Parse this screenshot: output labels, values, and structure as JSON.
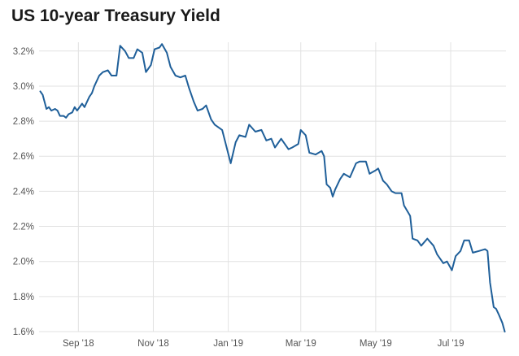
{
  "chart_data": {
    "type": "line",
    "title": "US 10-year Treasury Yield",
    "xlabel": "",
    "ylabel": "",
    "y_unit": "%",
    "ylim": [
      1.6,
      3.25
    ],
    "yticks": [
      1.6,
      1.8,
      2.0,
      2.2,
      2.4,
      2.6,
      2.8,
      3.0,
      3.2
    ],
    "ytick_labels": [
      "1.6%",
      "1.8%",
      "2.0%",
      "2.2%",
      "2.4%",
      "2.6%",
      "2.8%",
      "3.0%",
      "3.2%"
    ],
    "xlim": [
      "2018-07-31",
      "2019-08-15"
    ],
    "xticks": [
      "2018-09-01",
      "2018-11-01",
      "2019-01-01",
      "2019-03-01",
      "2019-05-01",
      "2019-07-01"
    ],
    "xtick_labels": [
      "Sep '18",
      "Nov '18",
      "Jan '19",
      "Mar '19",
      "May '19",
      "Jul '19"
    ],
    "grid": true,
    "line_color": "#1f5f99",
    "series": [
      {
        "x": [
          "2018-08-01",
          "2018-08-03",
          "2018-08-06",
          "2018-08-08",
          "2018-08-10",
          "2018-08-13",
          "2018-08-15",
          "2018-08-17",
          "2018-08-20",
          "2018-08-22",
          "2018-08-24",
          "2018-08-27",
          "2018-08-29",
          "2018-08-31",
          "2018-09-04",
          "2018-09-06",
          "2018-09-10",
          "2018-09-12",
          "2018-09-14",
          "2018-09-18",
          "2018-09-21",
          "2018-09-25",
          "2018-09-28",
          "2018-10-02",
          "2018-10-05",
          "2018-10-09",
          "2018-10-12",
          "2018-10-16",
          "2018-10-19",
          "2018-10-23",
          "2018-10-26",
          "2018-10-30",
          "2018-11-02",
          "2018-11-06",
          "2018-11-08",
          "2018-11-12",
          "2018-11-15",
          "2018-11-19",
          "2018-11-23",
          "2018-11-27",
          "2018-11-30",
          "2018-12-04",
          "2018-12-07",
          "2018-12-11",
          "2018-12-14",
          "2018-12-18",
          "2018-12-21",
          "2018-12-27",
          "2019-01-03",
          "2019-01-07",
          "2019-01-10",
          "2019-01-15",
          "2019-01-18",
          "2019-01-23",
          "2019-01-28",
          "2019-02-01",
          "2019-02-05",
          "2019-02-08",
          "2019-02-13",
          "2019-02-19",
          "2019-02-22",
          "2019-02-27",
          "2019-03-01",
          "2019-03-05",
          "2019-03-08",
          "2019-03-13",
          "2019-03-18",
          "2019-03-20",
          "2019-03-22",
          "2019-03-25",
          "2019-03-27",
          "2019-03-29",
          "2019-04-02",
          "2019-04-05",
          "2019-04-10",
          "2019-04-15",
          "2019-04-18",
          "2019-04-23",
          "2019-04-26",
          "2019-05-01",
          "2019-05-03",
          "2019-05-07",
          "2019-05-10",
          "2019-05-14",
          "2019-05-17",
          "2019-05-22",
          "2019-05-24",
          "2019-05-29",
          "2019-05-31",
          "2019-06-04",
          "2019-06-07",
          "2019-06-12",
          "2019-06-17",
          "2019-06-20",
          "2019-06-25",
          "2019-06-28",
          "2019-07-02",
          "2019-07-05",
          "2019-07-09",
          "2019-07-12",
          "2019-07-16",
          "2019-07-19",
          "2019-07-24",
          "2019-07-29",
          "2019-07-31",
          "2019-08-02",
          "2019-08-05",
          "2019-08-07",
          "2019-08-09",
          "2019-08-12",
          "2019-08-14"
        ],
        "y": [
          2.97,
          2.95,
          2.87,
          2.88,
          2.86,
          2.87,
          2.86,
          2.83,
          2.83,
          2.82,
          2.84,
          2.85,
          2.88,
          2.86,
          2.9,
          2.88,
          2.94,
          2.96,
          3.0,
          3.06,
          3.08,
          3.09,
          3.06,
          3.06,
          3.23,
          3.2,
          3.16,
          3.16,
          3.21,
          3.19,
          3.08,
          3.12,
          3.21,
          3.22,
          3.24,
          3.19,
          3.11,
          3.06,
          3.05,
          3.06,
          2.99,
          2.91,
          2.86,
          2.87,
          2.89,
          2.81,
          2.78,
          2.75,
          2.56,
          2.68,
          2.72,
          2.71,
          2.78,
          2.74,
          2.75,
          2.69,
          2.7,
          2.65,
          2.7,
          2.64,
          2.65,
          2.67,
          2.75,
          2.72,
          2.62,
          2.61,
          2.63,
          2.6,
          2.44,
          2.42,
          2.37,
          2.41,
          2.47,
          2.5,
          2.48,
          2.56,
          2.57,
          2.57,
          2.5,
          2.52,
          2.53,
          2.46,
          2.44,
          2.4,
          2.39,
          2.39,
          2.32,
          2.26,
          2.13,
          2.12,
          2.09,
          2.13,
          2.09,
          2.04,
          1.99,
          2.0,
          1.95,
          2.03,
          2.06,
          2.12,
          2.12,
          2.05,
          2.06,
          2.07,
          2.06,
          1.88,
          1.74,
          1.73,
          1.7,
          1.65,
          1.6
        ]
      }
    ]
  }
}
